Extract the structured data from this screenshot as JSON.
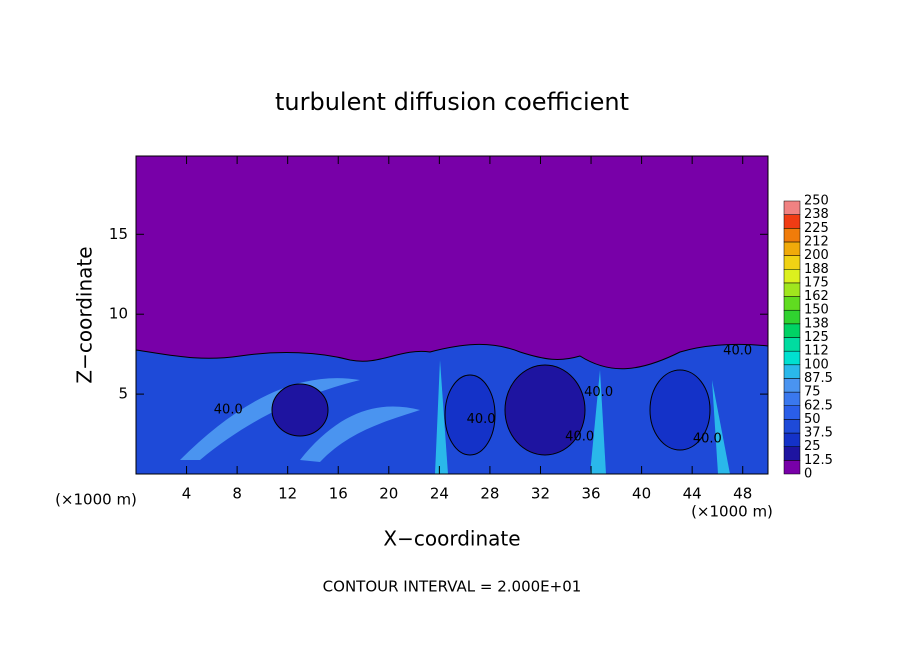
{
  "chart_data": {
    "type": "contour",
    "title": "turbulent diffusion coefficient",
    "x_label": "X−coordinate",
    "y_label": "Z−coordinate",
    "x_unit_left": "(×1000 m)",
    "x_unit_right": "(×1000 m)",
    "footer": "CONTOUR INTERVAL = 2.000E+01",
    "xlim": [
      0,
      50
    ],
    "ylim": [
      0,
      19.9
    ],
    "xticks": [
      4,
      8,
      12,
      16,
      20,
      24,
      28,
      32,
      36,
      40,
      44,
      48
    ],
    "yticks": [
      5,
      10,
      15
    ],
    "levels": [
      0,
      12.5,
      25,
      37.5,
      50,
      62.5,
      75,
      87.5,
      100,
      112,
      125,
      138,
      150,
      162,
      175,
      188,
      200,
      212,
      225,
      238,
      250
    ],
    "colors": [
      "#7800a8",
      "#1e14a0",
      "#1432c8",
      "#1e4ad8",
      "#2a5ee8",
      "#3a78ee",
      "#4a94f0",
      "#2ab8ea",
      "#00e0d0",
      "#00dca0",
      "#00d264",
      "#30d230",
      "#60dc20",
      "#a0e61e",
      "#dcf01e",
      "#f0d214",
      "#f0aa0a",
      "#f07c0a",
      "#f03c14",
      "#f08282"
    ],
    "contour_labels": [
      {
        "text": "40.0",
        "x": 47.6,
        "z": 7.7
      },
      {
        "text": "40.0",
        "x": 36.6,
        "z": 5.1
      },
      {
        "text": "40.0",
        "x": 27.3,
        "z": 3.4
      },
      {
        "text": "40.0",
        "x": 35.1,
        "z": 2.3
      },
      {
        "text": "40.0",
        "x": 45.2,
        "z": 2.2
      },
      {
        "text": "40.0",
        "x": 7.3,
        "z": 4.0
      }
    ]
  }
}
